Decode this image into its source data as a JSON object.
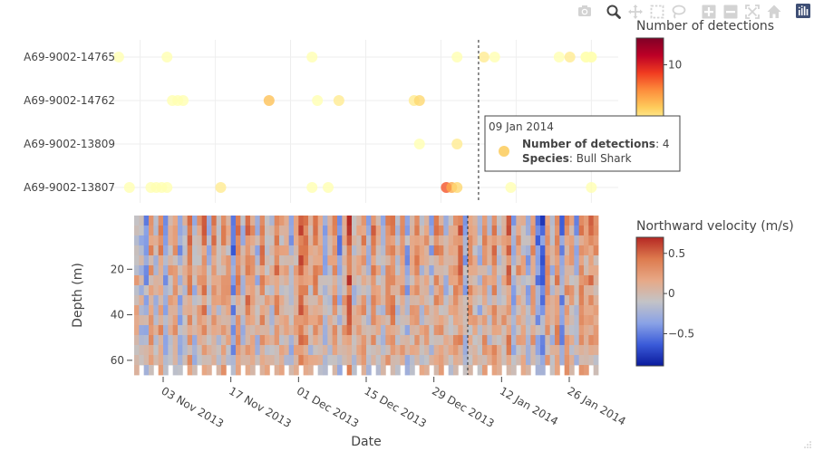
{
  "modebar": {
    "buttons": [
      {
        "name": "camera-icon",
        "title": "Download plot as a png"
      },
      {
        "name": "zoom-icon",
        "title": "Zoom"
      },
      {
        "name": "pan-icon",
        "title": "Pan"
      },
      {
        "name": "box-select-icon",
        "title": "Box Select"
      },
      {
        "name": "lasso-select-icon",
        "title": "Lasso Select"
      },
      {
        "name": "zoom-in-icon",
        "title": "Zoom in"
      },
      {
        "name": "zoom-out-icon",
        "title": "Zoom out"
      },
      {
        "name": "autoscale-icon",
        "title": "Autoscale"
      },
      {
        "name": "reset-axes-icon",
        "title": "Reset axes"
      },
      {
        "name": "plotly-logo-icon",
        "title": "Produced with Plotly"
      }
    ],
    "active_color": "#444444",
    "inactive_color": "#d3d3d3",
    "logo_color": "#3f4f75"
  },
  "chart_data": [
    {
      "type": "scatter",
      "name": "detections",
      "title": "",
      "xlabel": "",
      "ylabel": "",
      "tag_ids": [
        "A69-9002-13807",
        "A69-9002-13809",
        "A69-9002-14762",
        "A69-9002-14765"
      ],
      "detections": [
        {
          "tag": "A69-9002-14765",
          "date": "2013-10-30",
          "count": 1
        },
        {
          "tag": "A69-9002-14765",
          "date": "2013-11-08",
          "count": 1
        },
        {
          "tag": "A69-9002-14765",
          "date": "2013-12-05",
          "count": 1
        },
        {
          "tag": "A69-9002-14765",
          "date": "2014-01-01",
          "count": 1
        },
        {
          "tag": "A69-9002-14765",
          "date": "2014-01-06",
          "count": 2
        },
        {
          "tag": "A69-9002-14765",
          "date": "2014-01-08",
          "count": 1
        },
        {
          "tag": "A69-9002-14765",
          "date": "2014-01-20",
          "count": 1
        },
        {
          "tag": "A69-9002-14765",
          "date": "2014-01-22",
          "count": 2
        },
        {
          "tag": "A69-9002-14765",
          "date": "2014-01-25",
          "count": 1
        },
        {
          "tag": "A69-9002-14765",
          "date": "2014-01-25",
          "count": 1
        },
        {
          "tag": "A69-9002-14765",
          "date": "2014-01-26",
          "count": 1
        },
        {
          "tag": "A69-9002-14765",
          "date": "2014-01-26",
          "count": 1
        },
        {
          "tag": "A69-9002-14762",
          "date": "2013-11-09",
          "count": 1
        },
        {
          "tag": "A69-9002-14762",
          "date": "2013-11-10",
          "count": 1
        },
        {
          "tag": "A69-9002-14762",
          "date": "2013-11-11",
          "count": 1
        },
        {
          "tag": "A69-9002-14762",
          "date": "2013-11-27",
          "count": 4
        },
        {
          "tag": "A69-9002-14762",
          "date": "2013-12-06",
          "count": 1
        },
        {
          "tag": "A69-9002-14762",
          "date": "2013-12-10",
          "count": 2
        },
        {
          "tag": "A69-9002-14762",
          "date": "2013-12-24",
          "count": 2
        },
        {
          "tag": "A69-9002-14762",
          "date": "2013-12-25",
          "count": 3
        },
        {
          "tag": "A69-9002-13809",
          "date": "2013-12-25",
          "count": 1
        },
        {
          "tag": "A69-9002-13809",
          "date": "2014-01-01",
          "count": 2
        },
        {
          "tag": "A69-9002-13809",
          "date": "2014-01-09",
          "count": 4
        },
        {
          "tag": "A69-9002-13807",
          "date": "2013-11-01",
          "count": 1
        },
        {
          "tag": "A69-9002-13807",
          "date": "2013-11-05",
          "count": 1
        },
        {
          "tag": "A69-9002-13807",
          "date": "2013-11-06",
          "count": 1
        },
        {
          "tag": "A69-9002-13807",
          "date": "2013-11-07",
          "count": 1
        },
        {
          "tag": "A69-9002-13807",
          "date": "2013-11-08",
          "count": 1
        },
        {
          "tag": "A69-9002-13807",
          "date": "2013-11-18",
          "count": 2
        },
        {
          "tag": "A69-9002-13807",
          "date": "2013-12-05",
          "count": 1
        },
        {
          "tag": "A69-9002-13807",
          "date": "2013-12-08",
          "count": 1
        },
        {
          "tag": "A69-9002-13807",
          "date": "2013-12-30",
          "count": 8
        },
        {
          "tag": "A69-9002-13807",
          "date": "2013-12-31",
          "count": 5
        },
        {
          "tag": "A69-9002-13807",
          "date": "2014-01-01",
          "count": 3
        },
        {
          "tag": "A69-9002-13807",
          "date": "2014-01-11",
          "count": 1
        },
        {
          "tag": "A69-9002-13807",
          "date": "2014-01-26",
          "count": 1
        }
      ],
      "colorbar": {
        "title": "Number of detections",
        "tick_labels": [
          "10"
        ],
        "cmin": 1,
        "cmax": 14,
        "colors": [
          "#ffffb2",
          "#fecc5c",
          "#fd8d3c",
          "#f03b20",
          "#bd0026",
          "#800026"
        ]
      },
      "date_range": [
        "2013-10-29",
        "2014-01-31"
      ],
      "vline_date": "2014-01-05",
      "marker_opacity": 0.8,
      "grid": true
    },
    {
      "type": "heatmap",
      "name": "currents",
      "xlabel": "Date",
      "ylabel": "Depth (m)",
      "x_range": [
        "2013-10-28",
        "2014-02-01"
      ],
      "y_range": [
        70,
        0
      ],
      "y_ticks": [
        20,
        40,
        60
      ],
      "y_tick_labels": [
        "20",
        "40",
        "60"
      ],
      "x_ticks": [
        "2013-11-03",
        "2013-11-17",
        "2013-12-01",
        "2013-12-15",
        "2013-12-29",
        "2014-01-12",
        "2014-01-26"
      ],
      "x_tick_labels": [
        "03 Nov 2013",
        "17 Nov 2013",
        "01 Dec 2013",
        "15 Dec 2013",
        "29 Dec 2013",
        "12 Jan 2014",
        "26 Jan 2014"
      ],
      "depth_bins": 16,
      "start_date": "2013-10-28",
      "day_biases": [
        0.05,
        -0.15,
        -0.35,
        0.25,
        -0.1,
        0.3,
        -0.45,
        0.1,
        0.2,
        -0.3,
        -0.05,
        0.35,
        -0.2,
        0.15,
        0.4,
        -0.25,
        0.3,
        -0.05,
        0.25,
        0.1,
        -0.55,
        0.35,
        -0.15,
        0.45,
        0.2,
        -0.2,
        0.3,
        0.05,
        -0.1,
        0.35,
        0.1,
        0.05,
        -0.25,
        0.2,
        0.55,
        0.4,
        -0.05,
        0.3,
        0.15,
        -0.3,
        0.05,
        0.25,
        -0.4,
        0.2,
        0.6,
        -0.15,
        0.1,
        0.25,
        -0.25,
        0.35,
        0.05,
        -0.2,
        0.3,
        0.4,
        -0.1,
        0.2,
        -0.3,
        0.1,
        0.35,
        -0.05,
        0.15,
        -0.25,
        0.3,
        0.2,
        -0.15,
        0.05,
        0.25,
        0.4,
        -0.35,
        0.2,
        0.1,
        -0.2,
        0.3,
        -0.05,
        0.35,
        -0.1,
        0.15,
        0.45,
        -0.3,
        0.2,
        0.05,
        -0.25,
        0.3,
        -0.45,
        -0.6,
        0.2,
        -0.15,
        0.35,
        -0.55,
        0.25,
        0.1,
        -0.35,
        0.3,
        0.15,
        0.4,
        0.2
      ],
      "colorbar": {
        "title": "Northward velocity (m/s)",
        "tick_values": [
          0.5,
          0,
          -0.5
        ],
        "tick_labels": [
          "0.5",
          "0",
          "−0.5"
        ],
        "zmin": -0.9,
        "zmax": 0.7,
        "colors": [
          "#0a1a9c",
          "#3b5bd9",
          "#8aa2e6",
          "#c3c3c6",
          "#e7a886",
          "#dd7a4e",
          "#b52823"
        ]
      },
      "vline_date": "2014-01-05"
    }
  ],
  "hover": {
    "date_label": "09 Jan 2014",
    "line1_key": "Number of detections",
    "line1_value": ": 4",
    "line2_key": "Species",
    "line2_value": ": Bull Shark",
    "marker_color": "#fcd373",
    "tag": "A69-9002-13809",
    "date": "2014-01-09"
  }
}
